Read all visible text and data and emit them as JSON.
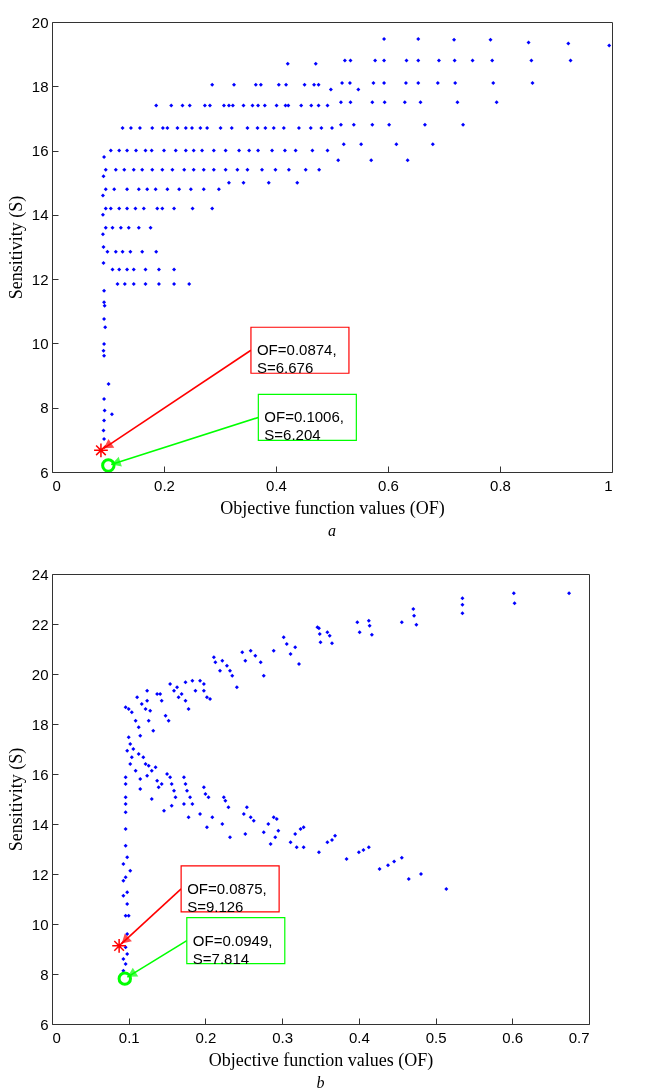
{
  "chart_data": [
    {
      "type": "scatter",
      "title": "a",
      "xlabel": "Objective function values (OF)",
      "ylabel": "Sensitivity (S)",
      "xlim": [
        0,
        1
      ],
      "ylim": [
        6,
        20
      ],
      "xticks": [
        0,
        0.2,
        0.4,
        0.6,
        0.8,
        1
      ],
      "yticks": [
        6,
        8,
        10,
        12,
        14,
        16,
        18,
        20
      ],
      "series": [
        {
          "color": "#0000ff",
          "marker": "diamond",
          "x": [
            0.093,
            0.093,
            0.094,
            0.093,
            0.095,
            0.093,
            0.092,
            0.093,
            0.101,
            0.093,
            0.094,
            0.093,
            0.092,
            0.093,
            0.107,
            0.092,
            0.092,
            0.091,
            0.091,
            0.091,
            0.092,
            0.093,
            0.117,
            0.13,
            0.146,
            0.167,
            0.191,
            0.218,
            0.245,
            0.108,
            0.12,
            0.134,
            0.146,
            0.167,
            0.191,
            0.218,
            0.099,
            0.114,
            0.126,
            0.14,
            0.161,
            0.186,
            0.096,
            0.108,
            0.123,
            0.137,
            0.155,
            0.176,
            0.096,
            0.105,
            0.12,
            0.134,
            0.149,
            0.164,
            0.188,
            0.197,
            0.218,
            0.251,
            0.286,
            0.096,
            0.111,
            0.134,
            0.155,
            0.17,
            0.185,
            0.206,
            0.227,
            0.248,
            0.271,
            0.298,
            0.316,
            0.342,
            0.387,
            0.438,
            0.096,
            0.114,
            0.129,
            0.146,
            0.161,
            0.179,
            0.197,
            0.215,
            0.236,
            0.253,
            0.271,
            0.289,
            0.31,
            0.331,
            0.349,
            0.375,
            0.399,
            0.423,
            0.453,
            0.477,
            0.511,
            0.57,
            0.635,
            0.105,
            0.12,
            0.134,
            0.15,
            0.167,
            0.178,
            0.2,
            0.221,
            0.239,
            0.253,
            0.268,
            0.289,
            0.31,
            0.334,
            0.352,
            0.368,
            0.393,
            0.416,
            0.435,
            0.465,
            0.492,
            0.521,
            0.552,
            0.615,
            0.68,
            0.126,
            0.141,
            0.157,
            0.179,
            0.198,
            0.206,
            0.224,
            0.239,
            0.25,
            0.265,
            0.277,
            0.301,
            0.321,
            0.349,
            0.367,
            0.381,
            0.396,
            0.414,
            0.441,
            0.462,
            0.481,
            0.5,
            0.516,
            0.539,
            0.572,
            0.602,
            0.666,
            0.734,
            0.186,
            0.213,
            0.233,
            0.246,
            0.273,
            0.282,
            0.307,
            0.316,
            0.323,
            0.342,
            0.358,
            0.368,
            0.38,
            0.401,
            0.417,
            0.422,
            0.445,
            0.463,
            0.476,
            0.492,
            0.516,
            0.533,
            0.572,
            0.594,
            0.63,
            0.658,
            0.724,
            0.794,
            0.498,
            0.547,
            0.286,
            0.325,
            0.364,
            0.373,
            0.405,
            0.418,
            0.451,
            0.468,
            0.476,
            0.518,
            0.532,
            0.574,
            0.593,
            0.632,
            0.654,
            0.689,
            0.72,
            0.788,
            0.858,
            0.421,
            0.471,
            0.523,
            0.533,
            0.577,
            0.593,
            0.633,
            0.654,
            0.691,
            0.719,
            0.751,
            0.786,
            0.856,
            0.926,
            0.593,
            0.654,
            0.718,
            0.783,
            0.851,
            0.922,
            0.995
          ],
          "values": [
            11.64,
            11.28,
            11.17,
            10.76,
            10.5,
            9.98,
            9.77,
            9.62,
            8.74,
            8.27,
            7.91,
            7.6,
            7.29,
            7.03,
            7.8,
            12.5,
            13.0,
            13.4,
            14.0,
            14.6,
            15.2,
            15.8,
            11.85,
            11.85,
            11.85,
            11.85,
            11.85,
            11.85,
            11.85,
            12.3,
            12.3,
            12.3,
            12.3,
            12.3,
            12.3,
            12.3,
            12.85,
            12.85,
            12.85,
            12.85,
            12.85,
            12.85,
            13.6,
            13.6,
            13.6,
            13.6,
            13.6,
            13.6,
            14.2,
            14.2,
            14.2,
            14.2,
            14.2,
            14.2,
            14.2,
            14.2,
            14.2,
            14.2,
            14.2,
            14.8,
            14.8,
            14.8,
            14.8,
            14.8,
            14.8,
            14.8,
            14.8,
            14.8,
            14.8,
            14.8,
            15.0,
            15.0,
            15.0,
            15.0,
            15.4,
            15.4,
            15.4,
            15.4,
            15.4,
            15.4,
            15.4,
            15.4,
            15.4,
            15.4,
            15.4,
            15.4,
            15.4,
            15.4,
            15.4,
            15.4,
            15.4,
            15.4,
            15.4,
            15.4,
            15.7,
            15.7,
            15.7,
            16.0,
            16.0,
            16.0,
            16.0,
            16.0,
            16.0,
            16.0,
            16.0,
            16.0,
            16.0,
            16.0,
            16.0,
            16.0,
            16.0,
            16.0,
            16.0,
            16.0,
            16.0,
            16.0,
            16.0,
            16.0,
            16.2,
            16.2,
            16.2,
            16.2,
            16.7,
            16.7,
            16.7,
            16.7,
            16.7,
            16.7,
            16.7,
            16.7,
            16.7,
            16.7,
            16.7,
            16.7,
            16.7,
            16.7,
            16.7,
            16.7,
            16.7,
            16.7,
            16.7,
            16.7,
            16.7,
            16.7,
            16.8,
            16.8,
            16.8,
            16.8,
            16.8,
            16.8,
            17.4,
            17.4,
            17.4,
            17.4,
            17.4,
            17.4,
            17.4,
            17.4,
            17.4,
            17.4,
            17.4,
            17.4,
            17.4,
            17.4,
            17.4,
            17.4,
            17.4,
            17.4,
            17.4,
            17.4,
            17.5,
            17.5,
            17.5,
            17.5,
            17.5,
            17.5,
            17.5,
            17.5,
            17.9,
            17.9,
            18.05,
            18.05,
            18.05,
            18.05,
            18.05,
            18.05,
            18.05,
            18.05,
            18.05,
            18.1,
            18.1,
            18.1,
            18.1,
            18.1,
            18.1,
            18.1,
            18.1,
            18.1,
            18.1,
            18.7,
            18.7,
            18.8,
            18.8,
            18.8,
            18.8,
            18.8,
            18.8,
            18.8,
            18.8,
            18.8,
            18.8,
            18.8,
            18.8,
            19.47,
            19.47,
            19.45,
            19.45,
            19.36,
            19.33,
            19.27
          ]
        },
        {
          "color": "#ff0000",
          "marker": "cross",
          "x": [
            0.0874
          ],
          "values": [
            6.676
          ]
        },
        {
          "color": "#00ff00",
          "marker": "circle",
          "x": [
            0.1006
          ],
          "values": [
            6.204
          ]
        }
      ],
      "annotations": [
        {
          "text": "OF=0.0874,\nS=6.676",
          "x": 0.0874,
          "y": 6.676
        },
        {
          "text": "OF=0.1006,\nS=6.204",
          "x": 0.1006,
          "y": 6.204
        }
      ]
    },
    {
      "type": "scatter",
      "title": "b",
      "xlabel": "Objective function values (OF)",
      "ylabel": "Sensitivity (S)",
      "xlim": [
        0,
        0.7
      ],
      "ylim": [
        6,
        24
      ],
      "xticks": [
        0,
        0.1,
        0.2,
        0.3,
        0.4,
        0.5,
        0.6,
        0.7
      ],
      "yticks": [
        6,
        8,
        10,
        12,
        14,
        16,
        18,
        20,
        22,
        24
      ],
      "series": [
        {
          "color": "#0000ff",
          "marker": "diamond",
          "x": [
            0.096,
            0.1,
            0.104,
            0.109,
            0.111,
            0.113,
            0.115,
            0.117,
            0.122,
            0.124,
            0.126,
            0.128,
            0.132,
            0.124,
            0.137,
            0.141,
            0.143,
            0.148,
            0.152,
            0.154,
            0.159,
            0.163,
            0.165,
            0.169,
            0.174,
            0.174,
            0.178,
            0.183,
            0.187,
            0.193,
            0.198,
            0.198,
            0.202,
            0.206,
            0.211,
            0.213,
            0.219,
            0.222,
            0.228,
            0.232,
            0.235,
            0.241,
            0.248,
            0.252,
            0.259,
            0.265,
            0.272,
            0.276,
            0.289,
            0.302,
            0.306,
            0.311,
            0.317,
            0.322,
            0.346,
            0.35,
            0.359,
            0.348,
            0.349,
            0.362,
            0.365,
            0.398,
            0.401,
            0.413,
            0.414,
            0.417,
            0.456,
            0.471,
            0.472,
            0.475,
            0.535,
            0.535,
            0.535,
            0.602,
            0.603,
            0.674,
            0.096,
            0.096,
            0.096,
            0.096,
            0.096,
            0.096,
            0.096,
            0.1,
            0.102,
            0.098,
            0.104,
            0.106,
            0.102,
            0.109,
            0.113,
            0.115,
            0.119,
            0.122,
            0.126,
            0.124,
            0.115,
            0.13,
            0.135,
            0.137,
            0.13,
            0.143,
            0.139,
            0.146,
            0.15,
            0.154,
            0.156,
            0.159,
            0.156,
            0.161,
            0.172,
            0.174,
            0.176,
            0.178,
            0.18,
            0.183,
            0.172,
            0.193,
            0.198,
            0.2,
            0.204,
            0.202,
            0.209,
            0.224,
            0.226,
            0.23,
            0.222,
            0.232,
            0.25,
            0.254,
            0.259,
            0.263,
            0.252,
            0.276,
            0.282,
            0.285,
            0.289,
            0.293,
            0.295,
            0.291,
            0.311,
            0.317,
            0.324,
            0.328,
            0.319,
            0.348,
            0.359,
            0.365,
            0.369,
            0.328,
            0.4,
            0.406,
            0.413,
            0.384,
            0.427,
            0.438,
            0.446,
            0.456,
            0.465,
            0.481,
            0.514,
            0.098,
            0.093,
            0.102,
            0.096,
            0.093,
            0.098,
            0.093,
            0.098,
            0.096,
            0.1,
            0.098,
            0.096,
            0.098,
            0.093,
            0.096,
            0.093
          ],
          "values": [
            18.67,
            18.6,
            18.47,
            18.13,
            19.07,
            17.87,
            17.53,
            18.8,
            18.6,
            18.93,
            18.13,
            18.53,
            17.73,
            19.33,
            19.2,
            19.2,
            18.93,
            18.33,
            18.13,
            19.6,
            19.33,
            19.47,
            19.07,
            19.2,
            18.93,
            19.67,
            18.6,
            19.73,
            19.33,
            19.73,
            19.6,
            19.33,
            19.07,
            19.0,
            20.67,
            20.47,
            20.13,
            20.53,
            20.33,
            20.13,
            19.93,
            19.47,
            20.87,
            20.53,
            20.93,
            20.73,
            20.47,
            19.93,
            20.93,
            21.47,
            21.2,
            20.8,
            21.07,
            20.4,
            21.87,
            21.27,
            21.67,
            21.83,
            21.6,
            21.53,
            21.23,
            22.07,
            21.67,
            22.13,
            21.93,
            21.57,
            22.07,
            22.6,
            22.33,
            21.97,
            23.03,
            22.77,
            22.43,
            23.23,
            22.83,
            23.23,
            15.87,
            15.6,
            15.07,
            14.8,
            14.47,
            13.8,
            13.13,
            17.47,
            17.2,
            16.93,
            16.67,
            17.0,
            16.4,
            16.13,
            16.8,
            15.8,
            16.67,
            16.4,
            16.33,
            15.93,
            15.4,
            16.13,
            16.27,
            15.73,
            15.0,
            15.6,
            15.47,
            14.53,
            16.0,
            15.87,
            15.6,
            15.33,
            14.73,
            15.07,
            15.87,
            15.6,
            15.33,
            14.27,
            15.07,
            14.8,
            14.8,
            14.4,
            15.47,
            15.2,
            15.07,
            13.87,
            14.27,
            15.07,
            14.93,
            14.67,
            14.0,
            13.47,
            14.4,
            14.67,
            14.27,
            14.13,
            13.6,
            13.67,
            14.0,
            13.2,
            14.27,
            14.2,
            13.73,
            13.47,
            13.27,
            13.6,
            13.8,
            13.87,
            13.07,
            12.87,
            13.27,
            13.36,
            13.53,
            13.07,
            12.87,
            12.96,
            13.07,
            12.6,
            12.2,
            12.35,
            12.5,
            12.65,
            11.8,
            12.0,
            11.4,
            12.67,
            12.4,
            12.13,
            11.87,
            11.73,
            11.27,
            11.13,
            10.8,
            10.33,
            10.33,
            9.6,
            9.07,
            8.8,
            8.6,
            8.4,
            8.13
          ]
        },
        {
          "color": "#ff0000",
          "marker": "cross",
          "x": [
            0.0875
          ],
          "values": [
            9.126
          ]
        },
        {
          "color": "#00ff00",
          "marker": "circle",
          "x": [
            0.0949
          ],
          "values": [
            7.814
          ]
        }
      ],
      "annotations": [
        {
          "text": "OF=0.0875,\nS=9.126",
          "x": 0.0875,
          "y": 9.126
        },
        {
          "text": "OF=0.0949,\nS=7.814",
          "x": 0.0949,
          "y": 7.814
        }
      ]
    }
  ]
}
